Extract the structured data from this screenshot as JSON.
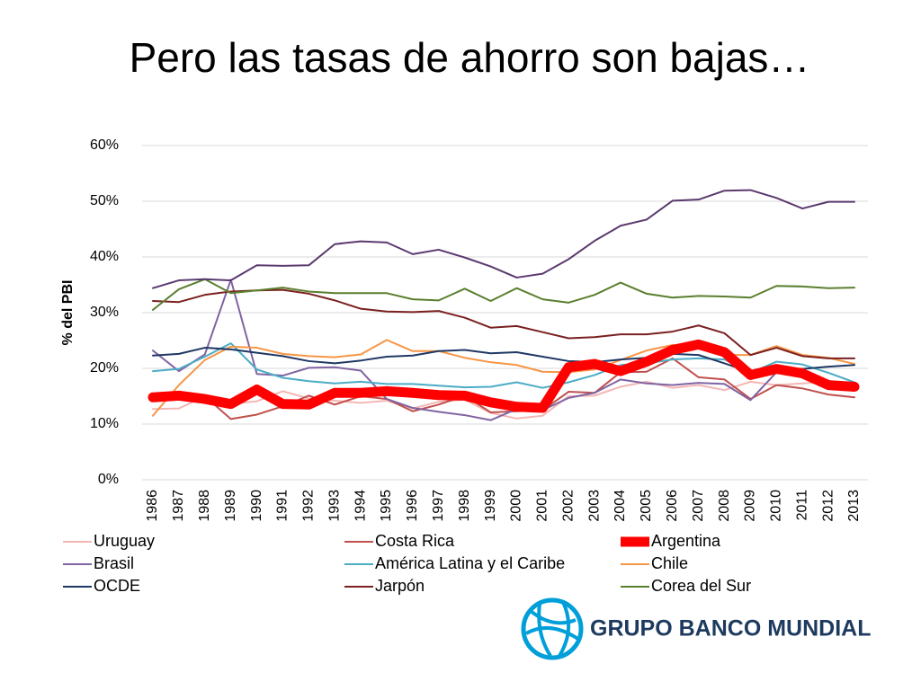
{
  "chart_data": {
    "type": "line",
    "title": "Pero las tasas de ahorro son bajas…",
    "y_label": "% del PBI",
    "x": [
      1986,
      1987,
      1988,
      1989,
      1990,
      1991,
      1992,
      1993,
      1994,
      1995,
      1996,
      1997,
      1998,
      1999,
      2000,
      2001,
      2002,
      2003,
      2004,
      2005,
      2006,
      2007,
      2008,
      2009,
      2010,
      2011,
      2012,
      2013
    ],
    "ylim": [
      0,
      60
    ],
    "yticks": [
      {
        "value": 0,
        "label": "0%"
      },
      {
        "value": 10,
        "label": "10%"
      },
      {
        "value": 20,
        "label": "20%"
      },
      {
        "value": 30,
        "label": "30%"
      },
      {
        "value": 40,
        "label": "40%"
      },
      {
        "value": 50,
        "label": "50%"
      },
      {
        "value": 60,
        "label": "60%"
      }
    ],
    "grid": true,
    "legend": "bottom",
    "series": [
      {
        "name": "Uruguay",
        "color": "#f4b6b4",
        "line_width": 2,
        "values": [
          12.7,
          12.8,
          15,
          13.6,
          14.1,
          15.9,
          14.6,
          14.2,
          13.8,
          14.2,
          12.8,
          14,
          14.4,
          12,
          11,
          11.5,
          15,
          15.1,
          16.7,
          17.6,
          16.5,
          17,
          16.1,
          17.6,
          17,
          17.3,
          17.6,
          17
        ]
      },
      {
        "name": "Costa Rica",
        "color": "#c0504d",
        "line_width": 2,
        "values": [
          15,
          14.8,
          15,
          10.9,
          11.7,
          13.2,
          15.1,
          13.5,
          15,
          14.5,
          12.3,
          13.5,
          15.1,
          12.1,
          12.3,
          12.5,
          15.8,
          15.6,
          19.3,
          19.4,
          21.8,
          18.4,
          18,
          14.5,
          17,
          16.4,
          15.3,
          14.8
        ]
      },
      {
        "name": "Argentina",
        "color": "#ff0000",
        "line_width": 11,
        "values": [
          14.8,
          15.1,
          14.5,
          13.6,
          16.2,
          13.6,
          13.5,
          15.6,
          15.6,
          15.9,
          15.6,
          15.2,
          15.1,
          13.9,
          13.1,
          12.9,
          20.2,
          20.8,
          19.5,
          21.2,
          23.3,
          24.3,
          22.9,
          18.8,
          19.9,
          19.1,
          17,
          16.7
        ]
      },
      {
        "name": "Brasil",
        "color": "#8064a2",
        "line_width": 2,
        "values": [
          23.2,
          19.5,
          22.5,
          35.9,
          19,
          18.7,
          20.1,
          20.2,
          19.6,
          14.5,
          12.9,
          12.2,
          11.6,
          10.7,
          12.7,
          12.5,
          14.7,
          15.6,
          18,
          17.3,
          17,
          17.4,
          17.2,
          14.3,
          19.3,
          19.3,
          17.7,
          17.2
        ]
      },
      {
        "name": "América Latina y el Caribe",
        "color": "#4bacc6",
        "line_width": 2,
        "values": [
          19.5,
          19.9,
          22.1,
          24.5,
          19.8,
          18.3,
          17.7,
          17.3,
          17.6,
          17.2,
          17.2,
          16.9,
          16.6,
          16.7,
          17.5,
          16.5,
          17.5,
          18.8,
          20.6,
          20.9,
          21.6,
          21.8,
          21.6,
          19.2,
          21.2,
          20.7,
          19.2,
          17.5
        ]
      },
      {
        "name": "Chile",
        "color": "#f79646",
        "line_width": 2,
        "values": [
          11.5,
          17,
          21.5,
          23.9,
          23.7,
          22.6,
          22.2,
          22,
          22.5,
          25.1,
          23.1,
          23.1,
          21.9,
          21.1,
          20.6,
          19.4,
          19.3,
          19.8,
          21.5,
          23.2,
          24.2,
          23.8,
          22.4,
          22.4,
          24,
          22.4,
          21.9,
          20.8
        ]
      },
      {
        "name": "OCDE",
        "color": "#1f3864",
        "line_width": 2,
        "values": [
          22.3,
          22.6,
          23.7,
          23.4,
          22.8,
          22.2,
          21.3,
          20.9,
          21.4,
          22.1,
          22.3,
          23.1,
          23.3,
          22.7,
          22.9,
          22.1,
          21.3,
          21.1,
          21.6,
          21.9,
          22.6,
          22.4,
          20.9,
          19.3,
          20,
          19.9,
          20.3,
          20.6
        ]
      },
      {
        "name": "Jarpón",
        "color": "#7b2020",
        "line_width": 2,
        "values": [
          32.1,
          31.9,
          33.2,
          33.8,
          34,
          34.1,
          33.4,
          32.2,
          30.7,
          30.2,
          30.1,
          30.3,
          29.1,
          27.3,
          27.6,
          26.5,
          25.4,
          25.6,
          26.1,
          26.1,
          26.6,
          27.7,
          26.3,
          22.4,
          23.7,
          22.2,
          21.8,
          21.8
        ]
      },
      {
        "name": "Corea del Sur",
        "color": "#5a7f2e",
        "line_width": 2,
        "values": [
          30.5,
          34.2,
          36,
          33.5,
          34,
          34.5,
          33.8,
          33.5,
          33.5,
          33.5,
          32.4,
          32.2,
          34.3,
          32.1,
          34.4,
          32.4,
          31.8,
          33.2,
          35.4,
          33.4,
          32.7,
          33,
          32.9,
          32.7,
          34.8,
          34.7,
          34.4,
          34.5
        ]
      },
      {
        "color": "#5b3a6e",
        "line_width": 2,
        "values": [
          34.4,
          35.8,
          36,
          35.8,
          38.5,
          38.4,
          38.5,
          42.3,
          42.8,
          42.6,
          40.5,
          41.3,
          39.9,
          38.3,
          36.3,
          37,
          39.6,
          42.9,
          45.6,
          46.7,
          50.1,
          50.3,
          51.9,
          52,
          50.6,
          48.7,
          49.9,
          49.9
        ]
      }
    ]
  },
  "logo": {
    "text": "GRUPO BANCO MUNDIAL"
  }
}
